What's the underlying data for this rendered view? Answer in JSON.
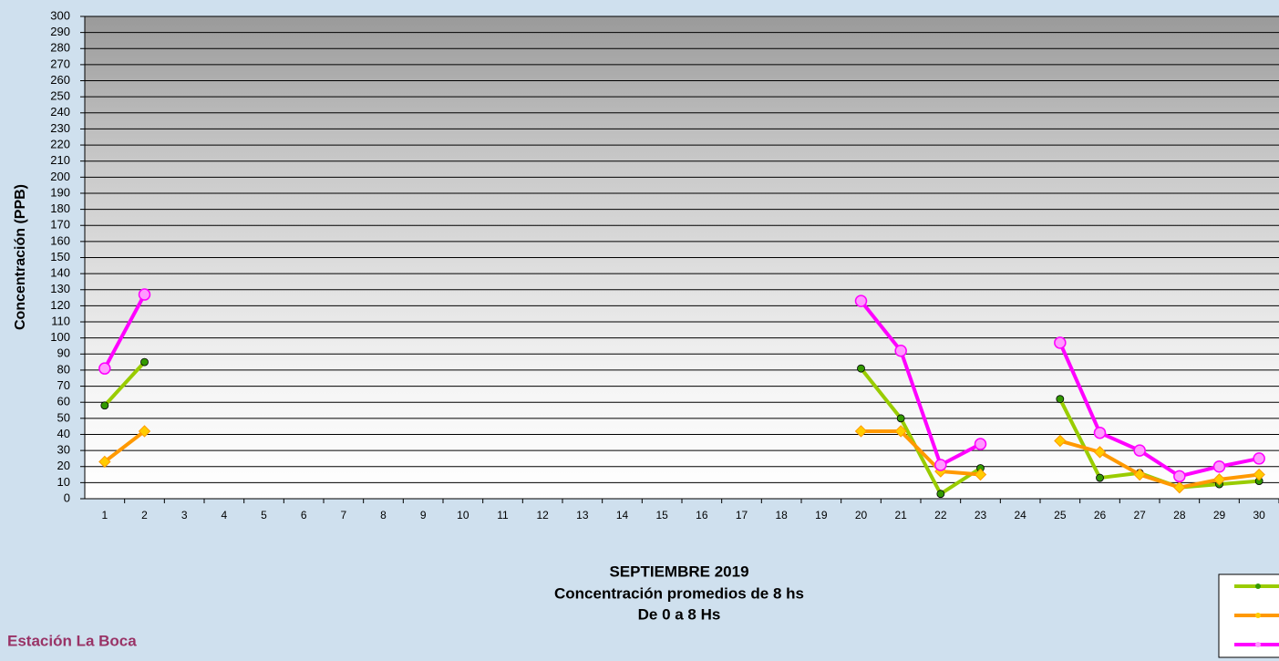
{
  "chart_data": {
    "type": "line",
    "title": [
      "SEPTIEMBRE 2019",
      "Concentración promedios de 8 hs",
      "De 0 a 8 Hs"
    ],
    "station": "Estación La Boca",
    "y_label": "Concentración  (PPB)",
    "categories": [
      "1",
      "2",
      "3",
      "4",
      "5",
      "6",
      "7",
      "8",
      "9",
      "10",
      "11",
      "12",
      "13",
      "14",
      "15",
      "16",
      "17",
      "18",
      "19",
      "20",
      "21",
      "22",
      "23",
      "24",
      "25",
      "26",
      "27",
      "28",
      "29",
      "30"
    ],
    "series": [
      {
        "color": "#99cc00",
        "marker": "circle",
        "marker_color": "#339900",
        "values": [
          58,
          85,
          null,
          null,
          null,
          null,
          null,
          null,
          null,
          null,
          null,
          null,
          null,
          null,
          null,
          null,
          null,
          null,
          null,
          81,
          50,
          3,
          19,
          null,
          62,
          13,
          16,
          7,
          9,
          11
        ]
      },
      {
        "color": "#ff9900",
        "marker": "diamond",
        "marker_color": "#ffcc00",
        "values": [
          23,
          42,
          null,
          null,
          null,
          null,
          null,
          null,
          null,
          null,
          null,
          null,
          null,
          null,
          null,
          null,
          null,
          null,
          null,
          42,
          42,
          17,
          15,
          null,
          36,
          29,
          15,
          7,
          12,
          15
        ]
      },
      {
        "color": "#ff00ff",
        "marker": "circle",
        "marker_color": "#ff99ff",
        "values": [
          81,
          127,
          null,
          null,
          null,
          null,
          null,
          null,
          null,
          null,
          null,
          null,
          null,
          null,
          null,
          null,
          null,
          null,
          null,
          123,
          92,
          21,
          34,
          null,
          97,
          41,
          30,
          14,
          20,
          25
        ]
      }
    ],
    "ylim": [
      0,
      300
    ],
    "yticks": [
      0,
      10,
      20,
      30,
      40,
      50,
      60,
      70,
      80,
      90,
      100,
      110,
      120,
      130,
      140,
      150,
      160,
      170,
      180,
      190,
      200,
      210,
      220,
      230,
      240,
      250,
      260,
      270,
      280,
      290,
      300
    ],
    "grid": true
  }
}
